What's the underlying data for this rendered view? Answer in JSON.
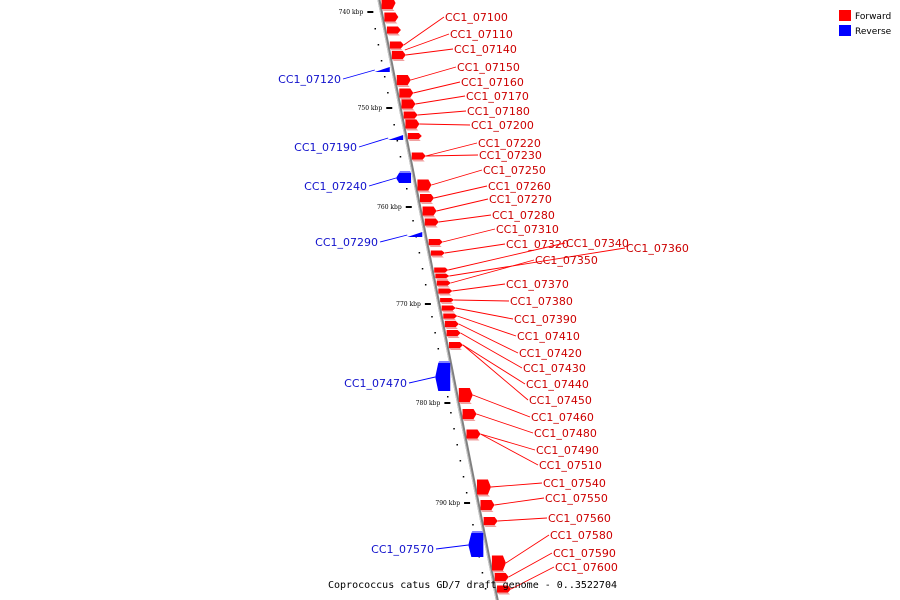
{
  "caption": "Coprococcus catus GD/7 draft genome - 0..3522704",
  "legend": [
    {
      "label": "Forward",
      "color": "#ff0000"
    },
    {
      "label": "Reverse",
      "color": "#0000ff"
    }
  ],
  "colors": {
    "forward": "#ff0000",
    "reverse": "#0000ff",
    "forward_text": "#cc0000",
    "reverse_text": "#1111cc",
    "axis": "#808080"
  },
  "scale_ticks": [
    "740 kbp",
    "750 kbp",
    "760 kbp",
    "770 kbp",
    "780 kbp",
    "790 kbp"
  ],
  "forward_genes": [
    "CC1_07100",
    "CC1_07110",
    "CC1_07140",
    "CC1_07150",
    "CC1_07160",
    "CC1_07170",
    "CC1_07180",
    "CC1_07200",
    "CC1_07220",
    "CC1_07230",
    "CC1_07250",
    "CC1_07260",
    "CC1_07270",
    "CC1_07280",
    "CC1_07310",
    "CC1_07320",
    "CC1_07340",
    "CC1_07360",
    "CC1_07350",
    "CC1_07370",
    "CC1_07380",
    "CC1_07390",
    "CC1_07410",
    "CC1_07420",
    "CC1_07430",
    "CC1_07440",
    "CC1_07450",
    "CC1_07460",
    "CC1_07480",
    "CC1_07490",
    "CC1_07510",
    "CC1_07540",
    "CC1_07550",
    "CC1_07560",
    "CC1_07580",
    "CC1_07590",
    "CC1_07600"
  ],
  "reverse_genes": [
    "CC1_07120",
    "CC1_07190",
    "CC1_07240",
    "CC1_07290",
    "CC1_07470",
    "CC1_07570"
  ]
}
